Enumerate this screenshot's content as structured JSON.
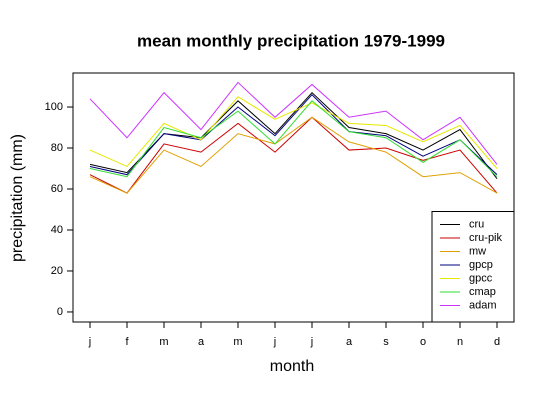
{
  "chart_data": {
    "type": "line",
    "title": "mean monthly precipitation 1979-1999",
    "x_label": "month",
    "y_label": "precipitation (mm)",
    "categories": [
      "j",
      "f",
      "m",
      "a",
      "m",
      "j",
      "j",
      "a",
      "s",
      "o",
      "n",
      "d"
    ],
    "ylim": [
      -4.9,
      116.6
    ],
    "yticks": [
      0,
      20,
      40,
      60,
      80,
      100
    ],
    "grid": false,
    "legend": "bottom-right",
    "series": [
      {
        "name": "cru",
        "color": "#000000",
        "values": [
          72,
          68,
          87,
          85,
          103,
          87,
          107,
          90,
          87,
          79,
          89,
          65
        ]
      },
      {
        "name": "cru-pik",
        "color": "#cc0000",
        "values": [
          67,
          58,
          82,
          78,
          92,
          78,
          95,
          79,
          80,
          74,
          79,
          58
        ]
      },
      {
        "name": "mw",
        "color": "#e0a000",
        "values": [
          66,
          58,
          79,
          71,
          87,
          82,
          95,
          83,
          78,
          66,
          68,
          58
        ]
      },
      {
        "name": "gpcp",
        "color": "#000080",
        "values": [
          71,
          67,
          87,
          84,
          100,
          86,
          106,
          88,
          86,
          76,
          84,
          67
        ]
      },
      {
        "name": "gpcc",
        "color": "#e8e800",
        "values": [
          79,
          71,
          92,
          84,
          105,
          94,
          102,
          92,
          91,
          83,
          91,
          70
        ]
      },
      {
        "name": "cmap",
        "color": "#33dd33",
        "values": [
          70,
          66,
          90,
          85,
          98,
          82,
          103,
          88,
          85,
          73,
          84,
          66
        ]
      },
      {
        "name": "adam",
        "color": "#cc33ff",
        "values": [
          104,
          85,
          107,
          89,
          112,
          95,
          111,
          95,
          98,
          84,
          95,
          72
        ]
      }
    ]
  }
}
